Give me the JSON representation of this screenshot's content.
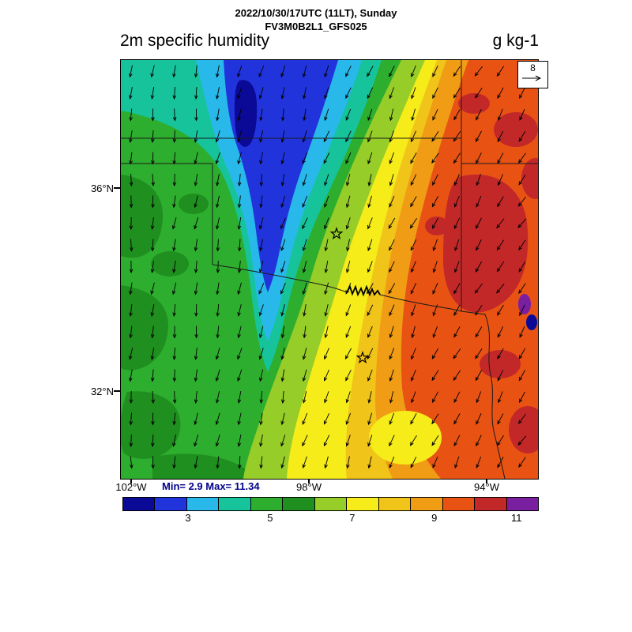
{
  "header": {
    "date_line": "2022/10/30/17UTC (11LT), Sunday",
    "model_line": "FV3M0B2L1_GFS025",
    "plot_title": "2m specific humidity",
    "units_label": "g kg-1"
  },
  "map": {
    "lat_labels": [
      {
        "text": "36°N"
      },
      {
        "text": "32°N"
      }
    ],
    "lon_labels": [
      {
        "text": "102°W"
      },
      {
        "text": "98°W"
      },
      {
        "text": "94°W"
      }
    ],
    "vector_ref": {
      "value": "8"
    }
  },
  "stats": {
    "minmax": "Min= 2.9 Max= 11.34"
  },
  "colorbar": {
    "colors": [
      "#0a0a96",
      "#2134dc",
      "#28b9ea",
      "#16c39b",
      "#2eae2e",
      "#1f8f1f",
      "#96cd28",
      "#f5ec1a",
      "#f0c419",
      "#f09c14",
      "#e85314",
      "#c32828",
      "#7a1fa0"
    ],
    "ticks": [
      {
        "label": "3",
        "pos": 15.8
      },
      {
        "label": "5",
        "pos": 35.6
      },
      {
        "label": "7",
        "pos": 55.4
      },
      {
        "label": "9",
        "pos": 75.2
      },
      {
        "label": "11",
        "pos": 95.0
      }
    ]
  },
  "chart_data": {
    "type": "heatmap",
    "subtype": "filled-contour surface weather map with wind vector arrows",
    "title": "2m specific humidity",
    "units": "g kg-1",
    "valid_time": "2022/10/30/17UTC (11LT), Sunday",
    "model": "FV3M0B2L1_GFS025",
    "field_min": 2.9,
    "field_max": 11.34,
    "colorbar_ticks": [
      3,
      5,
      7,
      9,
      11
    ],
    "colorbar_range_approx": [
      1.5,
      11.5
    ],
    "n_colors": 13,
    "lat_ticks": [
      "36°N",
      "32°N"
    ],
    "lon_ticks": [
      "102°W",
      "98°W",
      "94°W"
    ],
    "region": "Southern Great Plains: Oklahoma and north Texas with parts of Kansas, Missouri, Arkansas and Louisiana; state borders and Red River drawn",
    "wind": {
      "glyph": "arrows",
      "reference_value": 8,
      "direction": "northerly flow (arrows point southward), veering toward southwest-pointing in the east"
    },
    "field_pattern": [
      {
        "area": "north-central near Kansas border",
        "value_g_kg": "3-4.5",
        "color": "blue/cyan with small dark-blue minimum blob"
      },
      {
        "area": "west and northwest",
        "value_g_kg": "5-6.5",
        "color": "green with darker green patches"
      },
      {
        "area": "central corridor NE-SW",
        "value_g_kg": "7-8",
        "color": "yellow-green, yellow and gold bands"
      },
      {
        "area": "east and southeast",
        "value_g_kg": "8.5-10",
        "color": "orange to orange-red"
      },
      {
        "area": "far east near AR/LA border",
        "value_g_kg": "10-11.34",
        "color": "dark red patches with tiny purple/navy maximum specks"
      }
    ],
    "markers": [
      "two open star city markers (central Oklahoma, Dallas area)",
      "bold Red River meander cluster near Lake Texoma"
    ]
  }
}
